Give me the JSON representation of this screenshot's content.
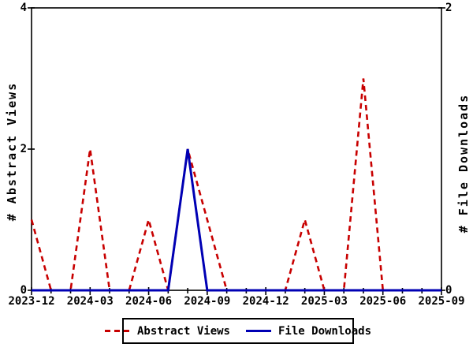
{
  "chart_data": {
    "type": "line",
    "title": "",
    "y_left_label": "# Abstract Views",
    "y_right_label": "# File Downloads",
    "x": [
      "2023-12",
      "2024-01",
      "2024-02",
      "2024-03",
      "2024-04",
      "2024-05",
      "2024-06",
      "2024-07",
      "2024-08",
      "2024-09",
      "2024-10",
      "2024-11",
      "2024-12",
      "2025-01",
      "2025-02",
      "2025-03",
      "2025-04",
      "2025-05",
      "2025-06",
      "2025-07",
      "2025-08",
      "2025-09"
    ],
    "x_tick_labels": [
      "2023-12",
      "2024-03",
      "2024-06",
      "2024-09",
      "2024-12",
      "2025-03",
      "2025-06",
      "2025-09"
    ],
    "x_tick_every_months": 3,
    "y_left_ticks": [
      4,
      2,
      0
    ],
    "y_right_ticks": [
      2,
      0
    ],
    "y_left_range": [
      0,
      4
    ],
    "y_right_range": [
      0,
      2
    ],
    "grid": false,
    "legend_position": "bottom",
    "series": [
      {
        "name": "Abstract Views",
        "axis": "left",
        "color": "#c80000",
        "style": "dashed",
        "values": [
          1,
          0,
          0,
          2,
          0,
          0,
          1,
          0,
          2,
          1,
          0,
          0,
          0,
          0,
          1,
          0,
          0,
          3,
          0,
          0,
          0,
          0
        ]
      },
      {
        "name": "File Downloads",
        "axis": "right",
        "color": "#0000b4",
        "style": "solid",
        "values": [
          0,
          0,
          0,
          0,
          0,
          0,
          0,
          0,
          1,
          0,
          0,
          0,
          0,
          0,
          0,
          0,
          0,
          0,
          0,
          0,
          0,
          0
        ]
      }
    ],
    "colors": {
      "abstract_views": "#c80000",
      "file_downloads": "#0000b4",
      "axis": "#000000",
      "background": "#ffffff"
    }
  }
}
